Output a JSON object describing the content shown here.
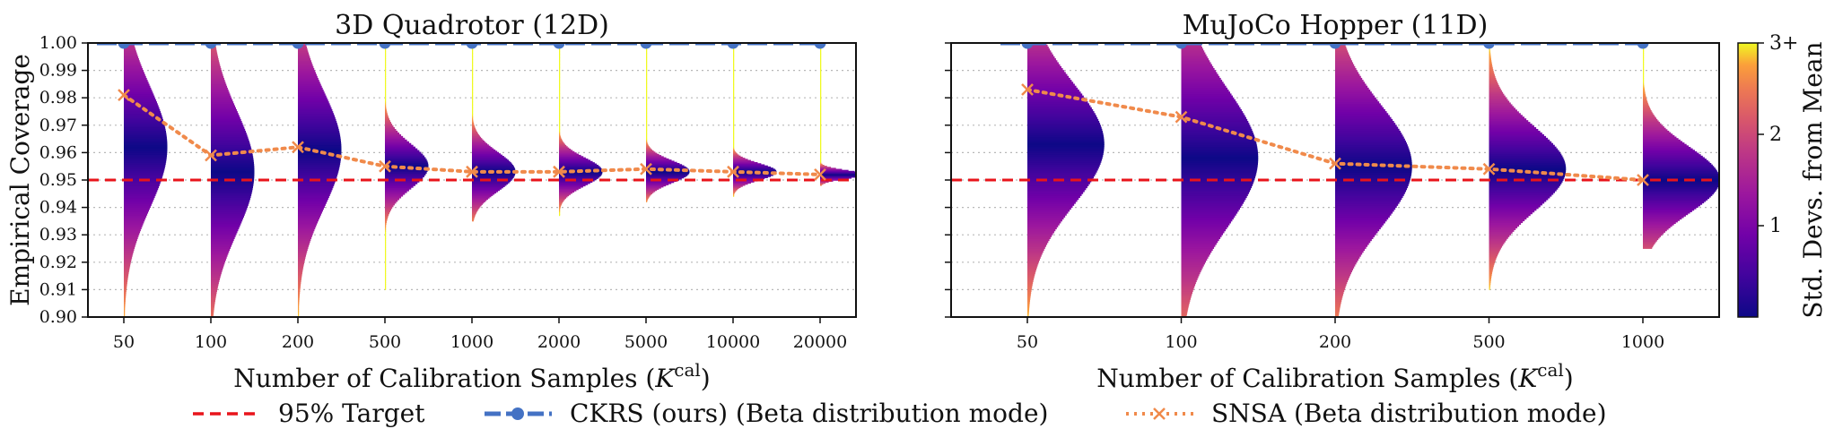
{
  "chart_data": [
    {
      "type": "violin-line",
      "title": "3D Quadrotor (12D)",
      "xlabel": "Number of Calibration Samples (K^cal)",
      "ylabel": "Empirical Coverage",
      "ylim": [
        0.9,
        1.0
      ],
      "yticks": [
        "0.90",
        "0.91",
        "0.92",
        "0.93",
        "0.94",
        "0.95",
        "0.96",
        "0.97",
        "0.98",
        "0.99",
        "1.00"
      ],
      "grid": "horizontal-dotted",
      "categories": [
        "50",
        "100",
        "200",
        "500",
        "1000",
        "2000",
        "5000",
        "10000",
        "20000"
      ],
      "target": 0.95,
      "series": [
        {
          "name": "CKRS (ours) (Beta distribution mode)",
          "values": [
            1.0,
            1.0,
            1.0,
            1.0,
            1.0,
            1.0,
            1.0,
            1.0,
            1.0
          ]
        },
        {
          "name": "SNSA (Beta distribution mode)",
          "values": [
            0.981,
            0.959,
            0.962,
            0.955,
            0.953,
            0.953,
            0.954,
            0.953,
            0.952
          ]
        }
      ],
      "violins": [
        {
          "mode": 0.962,
          "sd": 0.022,
          "ymin": 0.9
        },
        {
          "mode": 0.953,
          "sd": 0.022,
          "ymin": 0.9
        },
        {
          "mode": 0.961,
          "sd": 0.021,
          "ymin": 0.9
        },
        {
          "mode": 0.955,
          "sd": 0.008,
          "ymin": 0.91
        },
        {
          "mode": 0.953,
          "sd": 0.007,
          "ymin": 0.935
        },
        {
          "mode": 0.953,
          "sd": 0.005,
          "ymin": 0.937
        },
        {
          "mode": 0.953,
          "sd": 0.004,
          "ymin": 0.942
        },
        {
          "mode": 0.953,
          "sd": 0.003,
          "ymin": 0.944
        },
        {
          "mode": 0.952,
          "sd": 0.0015,
          "ymin": 0.948
        }
      ]
    },
    {
      "type": "violin-line",
      "title": "MuJoCo Hopper (11D)",
      "xlabel": "Number of Calibration Samples (K^cal)",
      "ylabel": "",
      "ylim": [
        0.9,
        1.0
      ],
      "grid": "horizontal-dotted",
      "categories": [
        "50",
        "100",
        "200",
        "500",
        "1000"
      ],
      "target": 0.95,
      "series": [
        {
          "name": "CKRS (ours) (Beta distribution mode)",
          "values": [
            1.0,
            1.0,
            1.0,
            1.0,
            1.0
          ]
        },
        {
          "name": "SNSA (Beta distribution mode)",
          "values": [
            0.983,
            0.973,
            0.956,
            0.954,
            0.95
          ]
        }
      ],
      "violins": [
        {
          "mode": 0.963,
          "sd": 0.022,
          "ymin": 0.9
        },
        {
          "mode": 0.958,
          "sd": 0.025,
          "ymin": 0.9
        },
        {
          "mode": 0.955,
          "sd": 0.022,
          "ymin": 0.9
        },
        {
          "mode": 0.954,
          "sd": 0.015,
          "ymin": 0.91
        },
        {
          "mode": 0.95,
          "sd": 0.012,
          "ymin": 0.925
        }
      ]
    }
  ],
  "colorbar": {
    "label": "Std. Devs. from Mean",
    "ticks": [
      "1",
      "2",
      "3+"
    ],
    "vmax": 3
  },
  "legend": [
    {
      "label": "95% Target",
      "color": "#e8141b",
      "style": "dashed"
    },
    {
      "label": "CKRS (ours) (Beta distribution mode)",
      "color": "#4472c4",
      "style": "dashed-dot"
    },
    {
      "label": "SNSA (Beta distribution mode)",
      "color": "#f08a4b",
      "style": "dotted-x"
    }
  ],
  "colors": {
    "target": "#e8141b",
    "ckrs": "#4472c4",
    "snsa": "#f08a4b"
  }
}
